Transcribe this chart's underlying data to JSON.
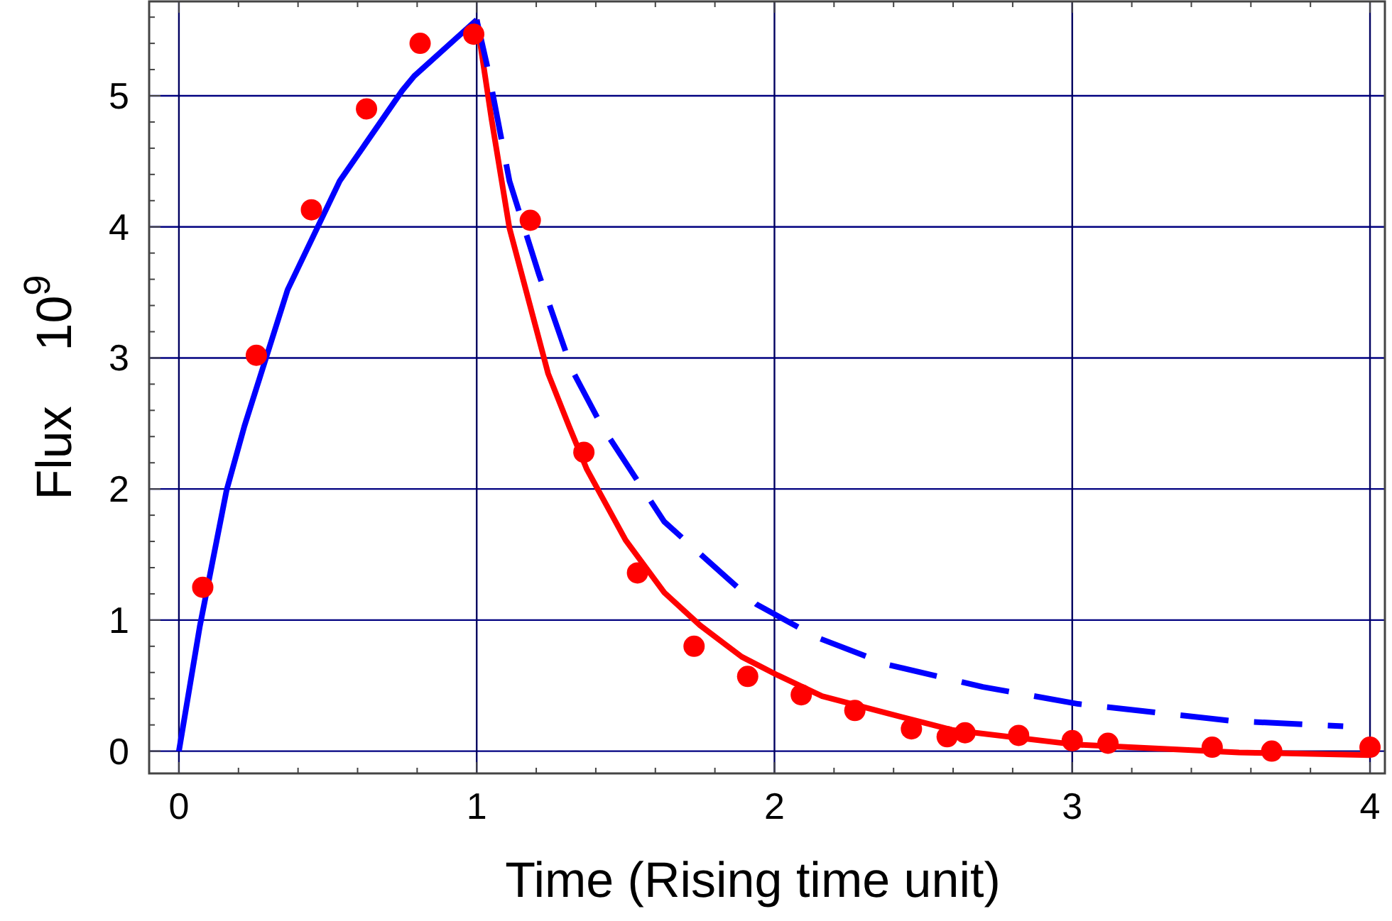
{
  "chart_data": {
    "type": "scatter",
    "xlabel": "Time (Rising time unit)",
    "ylabel": "Flux    10$^{9}$",
    "xlim": [
      -0.1,
      4.05
    ],
    "ylim": [
      -0.17,
      5.72
    ],
    "xticks": [
      0,
      {
        "value": 0.2,
        "label": null
      },
      {
        "value": 0.4,
        "label": null
      },
      {
        "value": 0.6,
        "label": null
      },
      {
        "value": 0.8,
        "label": null
      },
      1,
      {
        "value": 1.2,
        "label": null
      },
      {
        "value": 1.4,
        "label": null
      },
      {
        "value": 1.6,
        "label": null
      },
      {
        "value": 1.8,
        "label": null
      },
      2,
      {
        "value": 2.2,
        "label": null
      },
      {
        "value": 2.4,
        "label": null
      },
      {
        "value": 2.6,
        "label": null
      },
      {
        "value": 2.8,
        "label": null
      },
      3,
      {
        "value": 3.2,
        "label": null
      },
      {
        "value": 3.4,
        "label": null
      },
      {
        "value": 3.6,
        "label": null
      },
      {
        "value": 3.8,
        "label": null
      },
      4
    ],
    "yticks": [
      0,
      {
        "value": 0.2,
        "label": null
      },
      {
        "value": 0.4,
        "label": null
      },
      {
        "value": 0.6,
        "label": null
      },
      {
        "value": 0.8,
        "label": null
      },
      1,
      {
        "value": 1.2,
        "label": null
      },
      {
        "value": 1.4,
        "label": null
      },
      {
        "value": 1.6,
        "label": null
      },
      {
        "value": 1.8,
        "label": null
      },
      2,
      {
        "value": 2.2,
        "label": null
      },
      {
        "value": 2.4,
        "label": null
      },
      {
        "value": 2.6,
        "label": null
      },
      {
        "value": 2.8,
        "label": null
      },
      3,
      {
        "value": 3.2,
        "label": null
      },
      {
        "value": 3.4,
        "label": null
      },
      {
        "value": 3.6,
        "label": null
      },
      {
        "value": 3.8,
        "label": null
      },
      4,
      {
        "value": 4.2,
        "label": null
      },
      {
        "value": 4.4,
        "label": null
      },
      {
        "value": 4.6,
        "label": null
      },
      {
        "value": 4.8,
        "label": null
      },
      5,
      {
        "value": 5.2,
        "label": null
      },
      {
        "value": 5.4,
        "label": null
      },
      {
        "value": 5.6,
        "label": null
      }
    ],
    "grid": true,
    "series": [
      {
        "type": "line",
        "color": "#0000ff",
        "line_style": "solid",
        "marker": "none",
        "x": [
          0,
          0.07,
          0.16,
          0.22,
          0.365,
          0.54,
          0.75,
          0.79,
          1.0
        ],
        "values": [
          0,
          0.95,
          1.99,
          2.48,
          3.52,
          4.35,
          5.04,
          5.15,
          5.58
        ]
      },
      {
        "type": "line",
        "color": "#ff0000",
        "line_style": "solid",
        "marker": "none",
        "x": [
          1.0,
          1.05,
          1.11,
          1.24,
          1.31,
          1.37,
          1.5,
          1.63,
          1.75,
          1.89,
          2.01,
          2.16,
          2.36,
          2.6,
          3.01,
          3.56,
          4.0
        ],
        "values": [
          5.58,
          4.82,
          3.99,
          2.88,
          2.48,
          2.15,
          1.61,
          1.21,
          0.96,
          0.72,
          0.58,
          0.42,
          0.3,
          0.16,
          0.05,
          -0.01,
          -0.03
        ]
      },
      {
        "type": "line",
        "color": "#0000ff",
        "line_style": "dashed",
        "marker": "none",
        "x": [
          1.0,
          1.04,
          1.11,
          1.21,
          1.32,
          1.42,
          1.63,
          1.94,
          2.14,
          2.38,
          2.7,
          3.02,
          3.54,
          3.91
        ],
        "values": [
          5.58,
          5.18,
          4.35,
          3.63,
          2.91,
          2.48,
          1.75,
          1.12,
          0.87,
          0.66,
          0.49,
          0.36,
          0.23,
          0.19
        ]
      },
      {
        "color": "#ff0000",
        "marker": "circle",
        "x": [
          0.08,
          0.26,
          0.445,
          0.63,
          0.81,
          0.99,
          1.18,
          1.36,
          1.54,
          1.73,
          1.91,
          2.09,
          2.27,
          2.46,
          2.58,
          2.64,
          2.82,
          3.0,
          3.12,
          3.47,
          3.67,
          4.0
        ],
        "values": [
          1.25,
          3.02,
          4.13,
          4.9,
          5.4,
          5.47,
          4.05,
          2.28,
          1.36,
          0.8,
          0.57,
          0.43,
          0.31,
          0.17,
          0.11,
          0.14,
          0.12,
          0.08,
          0.06,
          0.03,
          0.0,
          0.03
        ]
      }
    ]
  }
}
